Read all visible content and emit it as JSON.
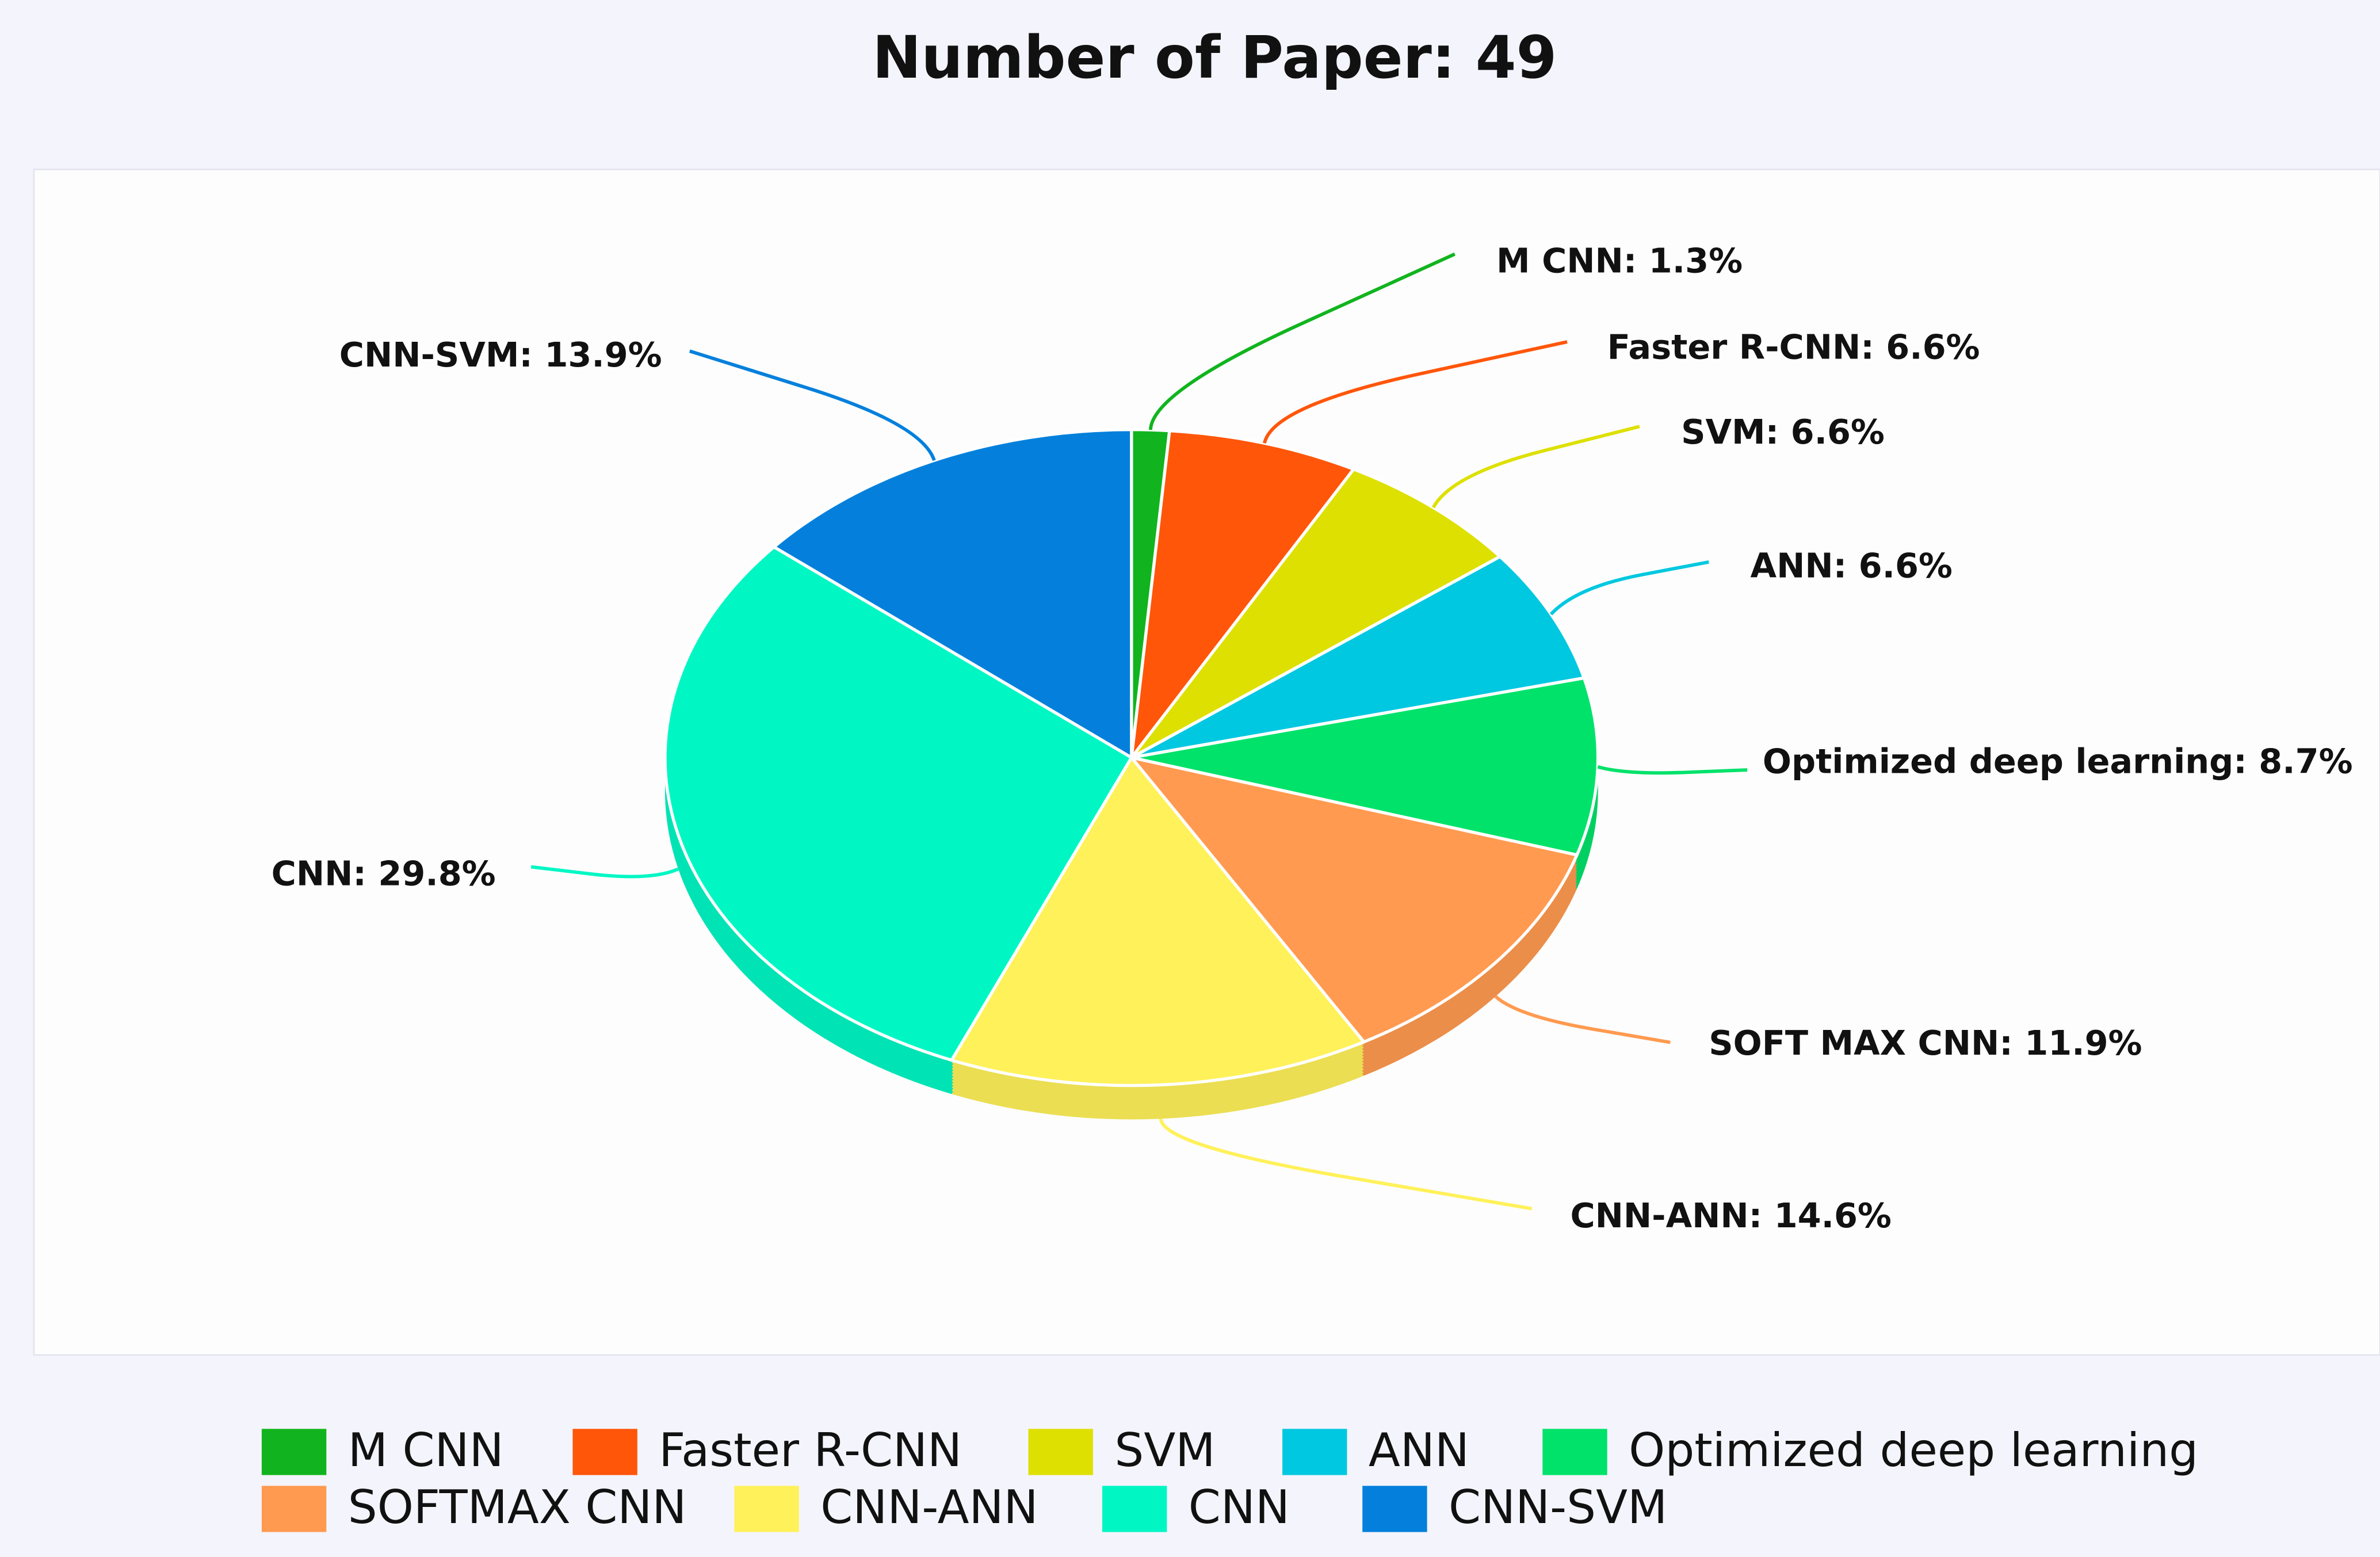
{
  "chart_data": {
    "type": "pie",
    "title": "Number of Paper: 49",
    "categories": [
      "M CNN",
      "Faster R-CNN",
      "SVM",
      "ANN",
      "Optimized deep learning",
      "SOFTMAX CNN",
      "CNN-ANN",
      "CNN",
      "CNN-SVM"
    ],
    "values": [
      1.3,
      6.6,
      6.6,
      6.6,
      8.7,
      11.9,
      14.6,
      29.8,
      13.9
    ],
    "value_labels": [
      "M CNN: 1.3%",
      "Faster R-CNN: 6.6%",
      "SVM: 6.6%",
      "ANN: 6.6%",
      "Optimized deep learning: 8.7%",
      "SOFT MAX CNN: 11.9%",
      "CNN-ANN: 14.6%",
      "CNN: 29.8%",
      "CNN-SVM: 13.9%"
    ],
    "colors": [
      "#11b41e",
      "#ff560a",
      "#dde000",
      "#00c8e0",
      "#00e26a",
      "#ff9a50",
      "#fff159",
      "#00f7c4",
      "#0480dc"
    ],
    "legend": "bottom"
  }
}
